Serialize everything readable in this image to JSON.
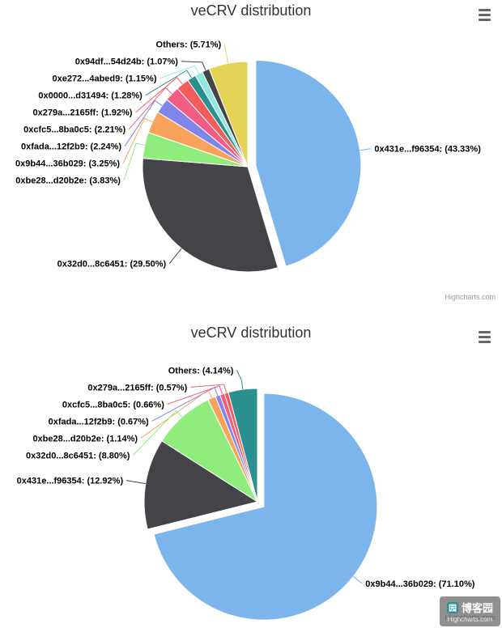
{
  "watermark": {
    "line1": "博客园",
    "line2": "Highcharts.com"
  },
  "chart_data": [
    {
      "type": "pie",
      "title": "veCRV distribution",
      "credits": "Highcharts.com",
      "legend": "none",
      "label_format": "{name}: ({pct}%)",
      "slices": [
        {
          "name": "0x431e...f96354",
          "pct": 43.33,
          "color": "#7cb5ec",
          "sliced": true
        },
        {
          "name": "0x32d0...8c6451",
          "pct": 29.5,
          "color": "#434348"
        },
        {
          "name": "0xbe28...d20b2e",
          "pct": 3.83,
          "color": "#90ed7d"
        },
        {
          "name": "0x9b44...36b029",
          "pct": 3.25,
          "color": "#f7a35c"
        },
        {
          "name": "0xfada...12f2b9",
          "pct": 2.24,
          "color": "#8085e9"
        },
        {
          "name": "0xcfc5...8ba0c5",
          "pct": 2.21,
          "color": "#f15c80"
        },
        {
          "name": "0x279a...2165ff",
          "pct": 1.92,
          "color": "#f45b5b"
        },
        {
          "name": "0x0000...d31494",
          "pct": 1.28,
          "color": "#2b908f"
        },
        {
          "name": "0xe272...4abed9",
          "pct": 1.15,
          "color": "#91e8e1"
        },
        {
          "name": "0x94df...54d24b",
          "pct": 1.07,
          "color": "#434348"
        },
        {
          "name": "Others",
          "pct": 5.71,
          "color": "#e4d354"
        }
      ]
    },
    {
      "type": "pie",
      "title": "veCRV distribution",
      "credits": "Highcharts.com",
      "legend": "none",
      "label_format": "{name}: ({pct}%)",
      "slices": [
        {
          "name": "0x9b44...36b029",
          "pct": 71.1,
          "color": "#7cb5ec",
          "sliced": true
        },
        {
          "name": "0x431e...f96354",
          "pct": 12.92,
          "color": "#434348"
        },
        {
          "name": "0x32d0...8c6451",
          "pct": 8.8,
          "color": "#90ed7d"
        },
        {
          "name": "0xbe28...d20b2e",
          "pct": 1.14,
          "color": "#f7a35c"
        },
        {
          "name": "0xfada...12f2b9",
          "pct": 0.67,
          "color": "#8085e9"
        },
        {
          "name": "0xcfc5...8ba0c5",
          "pct": 0.66,
          "color": "#f15c80"
        },
        {
          "name": "0x279a...2165ff",
          "pct": 0.57,
          "color": "#f45b5b"
        },
        {
          "name": "Others",
          "pct": 4.14,
          "color": "#2b908f"
        }
      ]
    }
  ]
}
